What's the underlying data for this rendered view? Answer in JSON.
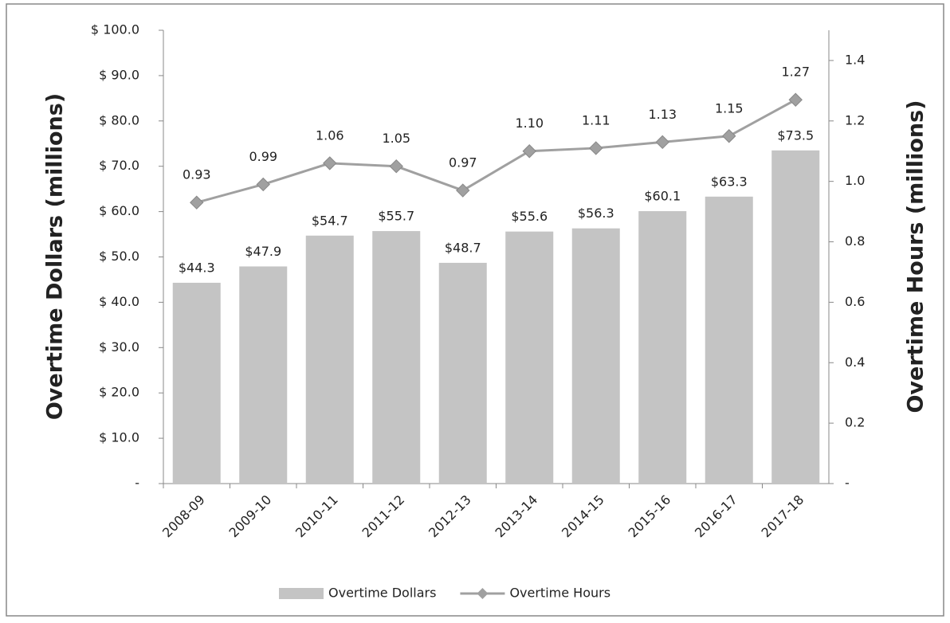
{
  "chart_data": {
    "type": "bar",
    "categories": [
      "2008-09",
      "2009-10",
      "2010-11",
      "2011-12",
      "2012-13",
      "2013-14",
      "2014-15",
      "2015-16",
      "2016-17",
      "2017-18"
    ],
    "series": [
      {
        "name": "Overtime Dollars",
        "type": "bar",
        "color": "#c4c4c4",
        "values": [
          44.3,
          47.9,
          54.7,
          55.7,
          48.7,
          55.6,
          56.3,
          60.1,
          63.3,
          73.5
        ],
        "value_labels": [
          "$44.3",
          "$47.9",
          "$54.7",
          "$55.7",
          "$48.7",
          "$55.6",
          "$56.3",
          "$60.1",
          "$63.3",
          "$73.5"
        ]
      },
      {
        "name": "Overtime Hours",
        "type": "line",
        "axis": "y2",
        "color": "#a0a0a0",
        "values": [
          0.93,
          0.99,
          1.06,
          1.05,
          0.97,
          1.1,
          1.11,
          1.13,
          1.15,
          1.27
        ],
        "value_labels": [
          "0.93",
          "0.99",
          "1.06",
          "1.05",
          "0.97",
          "1.10",
          "1.11",
          "1.13",
          "1.15",
          "1.27"
        ]
      }
    ],
    "ylabel": "Overtime Dollars (millions)",
    "y2label": "Overtime Hours (millions)",
    "ylim": [
      0,
      100
    ],
    "yticks": [
      {
        "value": 0,
        "label": "-"
      },
      {
        "value": 10,
        "label": "$ 10.0"
      },
      {
        "value": 20,
        "label": "$ 20.0"
      },
      {
        "value": 30,
        "label": "$ 30.0"
      },
      {
        "value": 40,
        "label": "$ 40.0"
      },
      {
        "value": 50,
        "label": "$ 50.0"
      },
      {
        "value": 60,
        "label": "$ 60.0"
      },
      {
        "value": 70,
        "label": "$ 70.0"
      },
      {
        "value": 80,
        "label": "$ 80.0"
      },
      {
        "value": 90,
        "label": "$ 90.0"
      },
      {
        "value": 100,
        "label": "$ 100.0"
      }
    ],
    "y2lim": [
      0,
      1.5
    ],
    "y2ticks": [
      {
        "value": 0,
        "label": "-"
      },
      0.2,
      0.4,
      0.6,
      0.8,
      {
        "value": 1.0,
        "label": "1.0"
      },
      1.2,
      1.4
    ],
    "legend": "bottom"
  }
}
